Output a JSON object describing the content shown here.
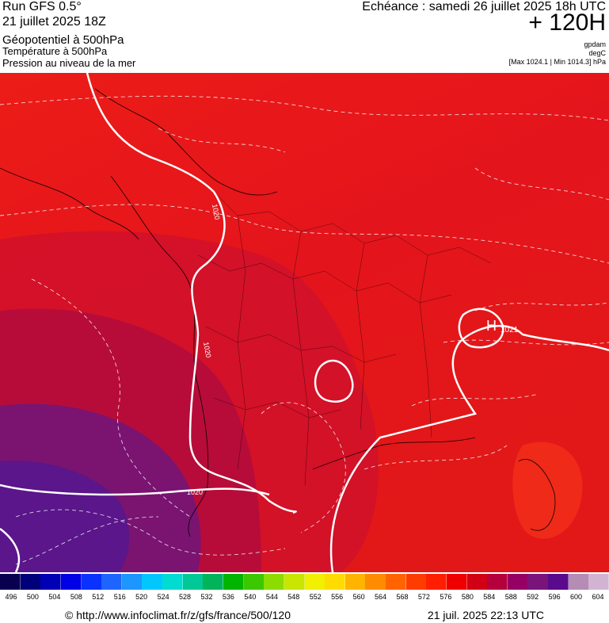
{
  "header": {
    "run": "Run GFS 0.5°",
    "run_date": "21 juillet 2025 18Z",
    "layer1": "Géopotentiel à 500hPa",
    "layer2": "Température à 500hPa",
    "layer3": "Pression au niveau de la mer",
    "echeance": "Echéance : samedi 26 juillet 2025 18h UTC",
    "horizon": "+ 120H",
    "unit1": "gpdam",
    "unit2": "degC",
    "maxmin": "[Max 1024.1 | Min 1014.3] hPa"
  },
  "map": {
    "pressure_labels": [
      "1020",
      "1020",
      "1020"
    ],
    "high_marker": "H",
    "high_value": "1021"
  },
  "scale": {
    "values": [
      "496",
      "500",
      "504",
      "508",
      "512",
      "516",
      "520",
      "524",
      "528",
      "532",
      "536",
      "540",
      "544",
      "548",
      "552",
      "556",
      "560",
      "564",
      "568",
      "572",
      "576",
      "580",
      "584",
      "588",
      "592",
      "596",
      "600",
      "604"
    ],
    "colors": [
      "#0a0050",
      "#00007a",
      "#0000b4",
      "#0000e6",
      "#0a32ff",
      "#1e64ff",
      "#1e96ff",
      "#00c8ff",
      "#00dcd2",
      "#00c896",
      "#00b45a",
      "#00b400",
      "#3cc800",
      "#8cdc00",
      "#c8e600",
      "#f0f000",
      "#ffdc00",
      "#ffb400",
      "#ff8c00",
      "#ff6400",
      "#ff3c00",
      "#ff1e00",
      "#ee0000",
      "#d20014",
      "#b4003c",
      "#960064",
      "#7a147a",
      "#5a0a8c",
      "#b48cb4",
      "#d2b4d2"
    ]
  },
  "footer": {
    "url": "© http://www.infoclimat.fr/z/gfs/france/500/120",
    "generated": "21 juil. 2025 22:13 UTC"
  },
  "colors": {
    "land_red": "#e8161a",
    "deep_red": "#c4102e",
    "purple": "#5c1a86",
    "isobar": "#ffffff"
  }
}
